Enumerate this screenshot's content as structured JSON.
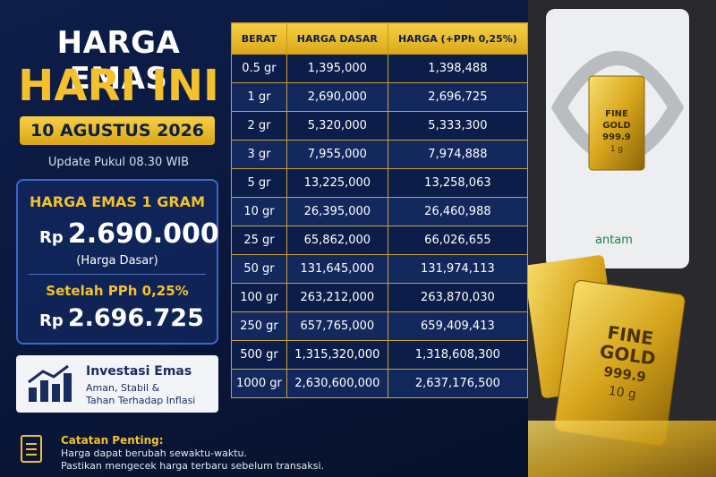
{
  "header": {
    "title_line1": "HARGA EMAS",
    "title_line2": "HARI INI",
    "date": "10 AGUSTUS 2026",
    "update": "Update Pukul 08.30 WIB"
  },
  "price_box": {
    "heading": "HARGA EMAS 1 GRAM",
    "currency": "Rp",
    "base_price": "2.690.000",
    "base_note": "(Harga Dasar)",
    "after_tax_heading": "Setelah PPh 0,25%",
    "after_tax_currency": "Rp",
    "after_tax_price": "2.696.725"
  },
  "invest_card": {
    "title": "Investasi Emas",
    "line1": "Aman, Stabil &",
    "line2": "Tahan Terhadap Inflasi"
  },
  "note": {
    "title": "Catatan Penting:",
    "line1": "Harga dapat berubah sewaktu-waktu.",
    "line2": "Pastikan mengecek harga terbaru sebelum transaksi."
  },
  "table": {
    "headers": [
      "BERAT",
      "HARGA DASAR",
      "HARGA (+PPh 0,25%)"
    ],
    "rows": [
      [
        "0.5 gr",
        "1,395,000",
        "1,398,488"
      ],
      [
        "1 gr",
        "2,690,000",
        "2,696,725"
      ],
      [
        "2 gr",
        "5,320,000",
        "5,333,300"
      ],
      [
        "3 gr",
        "7,955,000",
        "7,974,888"
      ],
      [
        "5 gr",
        "13,225,000",
        "13,258,063"
      ],
      [
        "10 gr",
        "26,395,000",
        "26,460,988"
      ],
      [
        "25 gr",
        "65,862,000",
        "66,026,655"
      ],
      [
        "50 gr",
        "131,645,000",
        "131,974,113"
      ],
      [
        "100 gr",
        "263,212,000",
        "263,870,030"
      ],
      [
        "250 gr",
        "657,765,000",
        "659,409,413"
      ],
      [
        "500 gr",
        "1,315,320,000",
        "1,318,608,300"
      ],
      [
        "1000 gr",
        "2,630,600,000",
        "2,637,176,500"
      ]
    ]
  },
  "product": {
    "card_bar_line1": "FINE",
    "card_bar_line2": "GOLD",
    "card_bar_purity": "999.9",
    "card_bar_weight": "1 g",
    "brand": "antam",
    "bar_line1": "FINE",
    "bar_line2": "GOLD",
    "bar_purity": "999.9",
    "bar_weight": "10 g"
  }
}
